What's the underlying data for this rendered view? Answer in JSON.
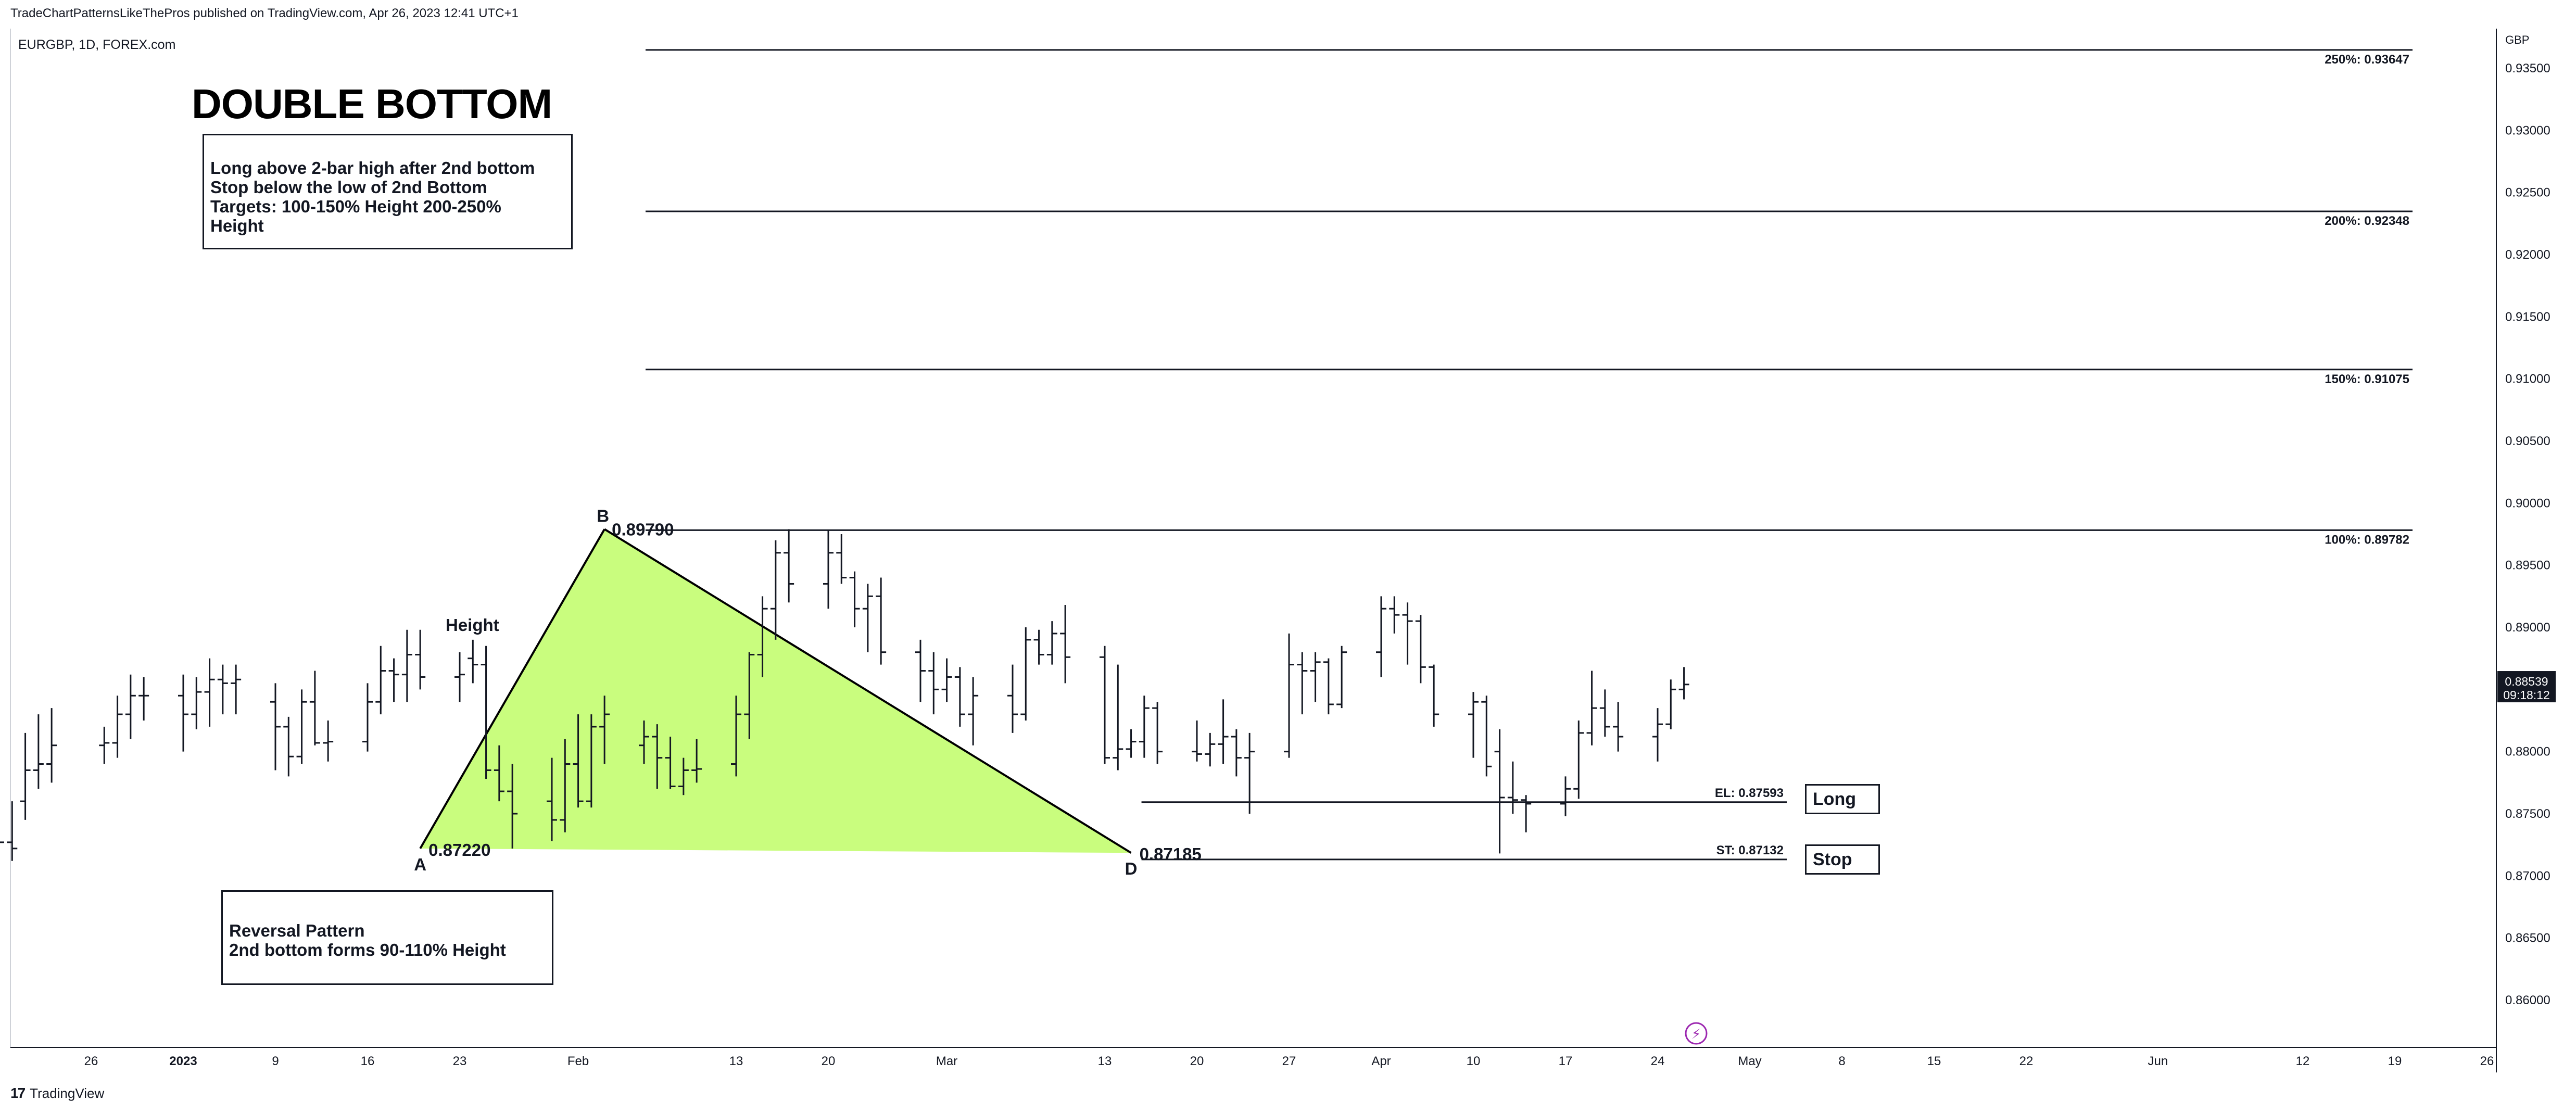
{
  "header": {
    "published": "TradeChartPatternsLikeThePros published on TradingView.com, Apr 26, 2023 12:41 UTC+1",
    "symbol": "EURGBP, 1D, FOREX.com"
  },
  "footer": {
    "brand": "TradingView",
    "logo_glyph": "17"
  },
  "colors": {
    "pattern_fill": "#c9fd7e",
    "bars": "#131722",
    "price_label_bg": "#131722",
    "alert_icon": "#9c27b0"
  },
  "annotations": {
    "title": "DOUBLE BOTTOM",
    "rules_box": [
      "Long above 2-bar high after 2nd bottom",
      "Stop below the low of 2nd Bottom",
      "Targets: 100-150% Height 200-250%",
      "Height"
    ],
    "reversal_box": [
      "Reversal Pattern",
      "2nd bottom forms 90-110% Height"
    ],
    "height_label": "Height",
    "point_a": "A",
    "point_b": "B",
    "point_d": "D",
    "price_a": "0.87220",
    "price_b": "0.89790",
    "price_d": "0.87185",
    "long_tag": "Long",
    "stop_tag": "Stop",
    "alert_glyph": "⚡"
  },
  "chart_data": {
    "type": "bar",
    "symbol": "EURGBP",
    "timeframe": "1D",
    "currency": "GBP",
    "ylim": [
      0.8565,
      0.9395
    ],
    "y_ticks": [
      "0.93500",
      "0.93000",
      "0.92500",
      "0.92000",
      "0.91500",
      "0.91000",
      "0.90500",
      "0.90000",
      "0.89500",
      "0.89000",
      "0.88500",
      "0.88000",
      "0.87500",
      "0.87000",
      "0.86500",
      "0.86000"
    ],
    "x_ticks": [
      {
        "label": "26",
        "date": "2022-12-26"
      },
      {
        "label": "2023",
        "date": "2023-01-02",
        "bold": true
      },
      {
        "label": "9",
        "date": "2023-01-09"
      },
      {
        "label": "16",
        "date": "2023-01-16"
      },
      {
        "label": "23",
        "date": "2023-01-23"
      },
      {
        "label": "Feb",
        "date": "2023-02-01"
      },
      {
        "label": "13",
        "date": "2023-02-13"
      },
      {
        "label": "20",
        "date": "2023-02-20"
      },
      {
        "label": "Mar",
        "date": "2023-03-01"
      },
      {
        "label": "13",
        "date": "2023-03-13"
      },
      {
        "label": "20",
        "date": "2023-03-20"
      },
      {
        "label": "27",
        "date": "2023-03-27"
      },
      {
        "label": "Apr",
        "date": "2023-04-03"
      },
      {
        "label": "10",
        "date": "2023-04-10"
      },
      {
        "label": "17",
        "date": "2023-04-17"
      },
      {
        "label": "24",
        "date": "2023-04-24"
      },
      {
        "label": "May",
        "date": "2023-05-01"
      },
      {
        "label": "8",
        "date": "2023-05-08"
      },
      {
        "label": "15",
        "date": "2023-05-15"
      },
      {
        "label": "22",
        "date": "2023-05-22"
      },
      {
        "label": "Jun",
        "date": "2023-06-01"
      },
      {
        "label": "12",
        "date": "2023-06-12"
      },
      {
        "label": "19",
        "date": "2023-06-19"
      },
      {
        "label": "26",
        "date": "2023-06-26"
      }
    ],
    "last_price": "0.88539",
    "countdown": "09:18:12",
    "target_levels": [
      {
        "label": "250%: 0.93647",
        "value": 0.93647
      },
      {
        "label": "200%: 0.92348",
        "value": 0.92348
      },
      {
        "label": "150%: 0.91075",
        "value": 0.91075
      },
      {
        "label": "100%: 0.89782",
        "value": 0.89782
      }
    ],
    "entry_levels": [
      {
        "label": "EL: 0.87593",
        "value": 0.87593
      },
      {
        "label": "ST: 0.87132",
        "value": 0.87132
      }
    ],
    "pattern_points": [
      {
        "name": "A",
        "date": "2023-01-20",
        "price": 0.8722
      },
      {
        "name": "B",
        "date": "2023-02-03",
        "price": 0.8979
      },
      {
        "name": "D",
        "date": "2023-03-15",
        "price": 0.87185
      }
    ],
    "bars": [
      {
        "date": "2022-12-19",
        "o": 0.8735,
        "h": 0.8775,
        "l": 0.872,
        "c": 0.8727
      },
      {
        "date": "2022-12-20",
        "o": 0.8727,
        "h": 0.876,
        "l": 0.8712,
        "c": 0.8722
      },
      {
        "date": "2022-12-21",
        "o": 0.876,
        "h": 0.8815,
        "l": 0.8745,
        "c": 0.8785
      },
      {
        "date": "2022-12-22",
        "o": 0.8785,
        "h": 0.883,
        "l": 0.877,
        "c": 0.879
      },
      {
        "date": "2022-12-23",
        "o": 0.879,
        "h": 0.8835,
        "l": 0.8775,
        "c": 0.8805
      },
      {
        "date": "2022-12-27",
        "o": 0.8805,
        "h": 0.882,
        "l": 0.879,
        "c": 0.8807
      },
      {
        "date": "2022-12-28",
        "o": 0.8807,
        "h": 0.8845,
        "l": 0.8795,
        "c": 0.883
      },
      {
        "date": "2022-12-29",
        "o": 0.883,
        "h": 0.8862,
        "l": 0.881,
        "c": 0.8845
      },
      {
        "date": "2022-12-30",
        "o": 0.8845,
        "h": 0.886,
        "l": 0.8825,
        "c": 0.8845
      },
      {
        "date": "2023-01-02",
        "o": 0.8845,
        "h": 0.8862,
        "l": 0.88,
        "c": 0.883
      },
      {
        "date": "2023-01-03",
        "o": 0.883,
        "h": 0.886,
        "l": 0.8818,
        "c": 0.8848
      },
      {
        "date": "2023-01-04",
        "o": 0.8848,
        "h": 0.8875,
        "l": 0.882,
        "c": 0.8858
      },
      {
        "date": "2023-01-05",
        "o": 0.8858,
        "h": 0.887,
        "l": 0.883,
        "c": 0.8855
      },
      {
        "date": "2023-01-06",
        "o": 0.8855,
        "h": 0.887,
        "l": 0.883,
        "c": 0.8858
      },
      {
        "date": "2023-01-09",
        "o": 0.884,
        "h": 0.8855,
        "l": 0.8785,
        "c": 0.882
      },
      {
        "date": "2023-01-10",
        "o": 0.882,
        "h": 0.8828,
        "l": 0.878,
        "c": 0.8796
      },
      {
        "date": "2023-01-11",
        "o": 0.8796,
        "h": 0.885,
        "l": 0.879,
        "c": 0.884
      },
      {
        "date": "2023-01-12",
        "o": 0.884,
        "h": 0.8865,
        "l": 0.8805,
        "c": 0.8807
      },
      {
        "date": "2023-01-13",
        "o": 0.8807,
        "h": 0.8825,
        "l": 0.8792,
        "c": 0.8808
      },
      {
        "date": "2023-01-16",
        "o": 0.8808,
        "h": 0.8855,
        "l": 0.88,
        "c": 0.884
      },
      {
        "date": "2023-01-17",
        "o": 0.884,
        "h": 0.8885,
        "l": 0.883,
        "c": 0.8865
      },
      {
        "date": "2023-01-18",
        "o": 0.8865,
        "h": 0.8875,
        "l": 0.884,
        "c": 0.8862
      },
      {
        "date": "2023-01-19",
        "o": 0.8862,
        "h": 0.8898,
        "l": 0.884,
        "c": 0.8878
      },
      {
        "date": "2023-01-20",
        "o": 0.8878,
        "h": 0.8898,
        "l": 0.885,
        "c": 0.886
      },
      {
        "date": "2023-01-23",
        "o": 0.886,
        "h": 0.888,
        "l": 0.884,
        "c": 0.8862
      },
      {
        "date": "2023-01-24",
        "o": 0.8875,
        "h": 0.889,
        "l": 0.8855,
        "c": 0.887
      },
      {
        "date": "2023-01-25",
        "o": 0.887,
        "h": 0.8885,
        "l": 0.8778,
        "c": 0.8785
      },
      {
        "date": "2023-01-26",
        "o": 0.8785,
        "h": 0.8805,
        "l": 0.876,
        "c": 0.8768
      },
      {
        "date": "2023-01-27",
        "o": 0.8768,
        "h": 0.879,
        "l": 0.8722,
        "c": 0.875
      },
      {
        "date": "2023-01-30",
        "o": 0.876,
        "h": 0.8795,
        "l": 0.8728,
        "c": 0.8745
      },
      {
        "date": "2023-01-31",
        "o": 0.8745,
        "h": 0.881,
        "l": 0.8735,
        "c": 0.879
      },
      {
        "date": "2023-02-01",
        "o": 0.879,
        "h": 0.883,
        "l": 0.8755,
        "c": 0.876
      },
      {
        "date": "2023-02-02",
        "o": 0.876,
        "h": 0.883,
        "l": 0.8755,
        "c": 0.882
      },
      {
        "date": "2023-02-03",
        "o": 0.882,
        "h": 0.8845,
        "l": 0.879,
        "c": 0.883
      },
      {
        "date": "2023-02-06",
        "o": 0.8805,
        "h": 0.8825,
        "l": 0.879,
        "c": 0.8812
      },
      {
        "date": "2023-02-07",
        "o": 0.8812,
        "h": 0.8822,
        "l": 0.877,
        "c": 0.8795
      },
      {
        "date": "2023-02-08",
        "o": 0.8795,
        "h": 0.8812,
        "l": 0.877,
        "c": 0.8772
      },
      {
        "date": "2023-02-09",
        "o": 0.8772,
        "h": 0.8795,
        "l": 0.8765,
        "c": 0.8785
      },
      {
        "date": "2023-02-10",
        "o": 0.8785,
        "h": 0.881,
        "l": 0.8775,
        "c": 0.8786
      },
      {
        "date": "2023-02-13",
        "o": 0.879,
        "h": 0.8845,
        "l": 0.878,
        "c": 0.883
      },
      {
        "date": "2023-02-14",
        "o": 0.883,
        "h": 0.888,
        "l": 0.881,
        "c": 0.8878
      },
      {
        "date": "2023-02-15",
        "o": 0.8878,
        "h": 0.8925,
        "l": 0.886,
        "c": 0.8915
      },
      {
        "date": "2023-02-16",
        "o": 0.8915,
        "h": 0.897,
        "l": 0.889,
        "c": 0.896
      },
      {
        "date": "2023-02-17",
        "o": 0.896,
        "h": 0.8979,
        "l": 0.892,
        "c": 0.8935
      },
      {
        "date": "2023-02-20",
        "o": 0.8935,
        "h": 0.8978,
        "l": 0.8915,
        "c": 0.896
      },
      {
        "date": "2023-02-21",
        "o": 0.896,
        "h": 0.8975,
        "l": 0.8935,
        "c": 0.894
      },
      {
        "date": "2023-02-22",
        "o": 0.894,
        "h": 0.8945,
        "l": 0.89,
        "c": 0.8915
      },
      {
        "date": "2023-02-23",
        "o": 0.8915,
        "h": 0.8935,
        "l": 0.888,
        "c": 0.8925
      },
      {
        "date": "2023-02-24",
        "o": 0.8925,
        "h": 0.894,
        "l": 0.887,
        "c": 0.888
      },
      {
        "date": "2023-02-27",
        "o": 0.888,
        "h": 0.889,
        "l": 0.884,
        "c": 0.8865
      },
      {
        "date": "2023-02-28",
        "o": 0.8865,
        "h": 0.888,
        "l": 0.883,
        "c": 0.885
      },
      {
        "date": "2023-03-01",
        "o": 0.885,
        "h": 0.8875,
        "l": 0.884,
        "c": 0.886
      },
      {
        "date": "2023-03-02",
        "o": 0.886,
        "h": 0.8868,
        "l": 0.882,
        "c": 0.883
      },
      {
        "date": "2023-03-03",
        "o": 0.883,
        "h": 0.886,
        "l": 0.8805,
        "c": 0.8845
      },
      {
        "date": "2023-03-06",
        "o": 0.8845,
        "h": 0.887,
        "l": 0.8815,
        "c": 0.883
      },
      {
        "date": "2023-03-07",
        "o": 0.883,
        "h": 0.89,
        "l": 0.8825,
        "c": 0.889
      },
      {
        "date": "2023-03-08",
        "o": 0.889,
        "h": 0.8898,
        "l": 0.887,
        "c": 0.8878
      },
      {
        "date": "2023-03-09",
        "o": 0.8878,
        "h": 0.8905,
        "l": 0.887,
        "c": 0.8895
      },
      {
        "date": "2023-03-10",
        "o": 0.8895,
        "h": 0.8918,
        "l": 0.8855,
        "c": 0.8876
      },
      {
        "date": "2023-03-13",
        "o": 0.8876,
        "h": 0.8885,
        "l": 0.879,
        "c": 0.8795
      },
      {
        "date": "2023-03-14",
        "o": 0.8795,
        "h": 0.887,
        "l": 0.8785,
        "c": 0.8802
      },
      {
        "date": "2023-03-15",
        "o": 0.8802,
        "h": 0.8818,
        "l": 0.8795,
        "c": 0.8808
      },
      {
        "date": "2023-03-16",
        "o": 0.8808,
        "h": 0.8845,
        "l": 0.8795,
        "c": 0.8835
      },
      {
        "date": "2023-03-17",
        "o": 0.8835,
        "h": 0.884,
        "l": 0.879,
        "c": 0.88
      },
      {
        "date": "2023-03-20",
        "o": 0.88,
        "h": 0.8825,
        "l": 0.8792,
        "c": 0.8798
      },
      {
        "date": "2023-03-21",
        "o": 0.8798,
        "h": 0.8815,
        "l": 0.8788,
        "c": 0.8806
      },
      {
        "date": "2023-03-22",
        "o": 0.8806,
        "h": 0.8842,
        "l": 0.879,
        "c": 0.8812
      },
      {
        "date": "2023-03-23",
        "o": 0.8812,
        "h": 0.8818,
        "l": 0.878,
        "c": 0.8795
      },
      {
        "date": "2023-03-24",
        "o": 0.8795,
        "h": 0.8815,
        "l": 0.875,
        "c": 0.88
      },
      {
        "date": "2023-03-27",
        "o": 0.88,
        "h": 0.8895,
        "l": 0.8795,
        "c": 0.887
      },
      {
        "date": "2023-03-28",
        "o": 0.887,
        "h": 0.888,
        "l": 0.883,
        "c": 0.8865
      },
      {
        "date": "2023-03-29",
        "o": 0.8865,
        "h": 0.888,
        "l": 0.884,
        "c": 0.8872
      },
      {
        "date": "2023-03-30",
        "o": 0.8872,
        "h": 0.8875,
        "l": 0.883,
        "c": 0.8838
      },
      {
        "date": "2023-03-31",
        "o": 0.8838,
        "h": 0.8885,
        "l": 0.8835,
        "c": 0.888
      },
      {
        "date": "2023-04-03",
        "o": 0.888,
        "h": 0.8925,
        "l": 0.886,
        "c": 0.8915
      },
      {
        "date": "2023-04-04",
        "o": 0.8915,
        "h": 0.8925,
        "l": 0.8895,
        "c": 0.891
      },
      {
        "date": "2023-04-05",
        "o": 0.891,
        "h": 0.892,
        "l": 0.887,
        "c": 0.8905
      },
      {
        "date": "2023-04-06",
        "o": 0.8905,
        "h": 0.891,
        "l": 0.8855,
        "c": 0.8868
      },
      {
        "date": "2023-04-07",
        "o": 0.8868,
        "h": 0.887,
        "l": 0.882,
        "c": 0.883
      },
      {
        "date": "2023-04-10",
        "o": 0.883,
        "h": 0.8848,
        "l": 0.8795,
        "c": 0.884
      },
      {
        "date": "2023-04-11",
        "o": 0.884,
        "h": 0.8845,
        "l": 0.878,
        "c": 0.8788
      },
      {
        "date": "2023-04-12",
        "o": 0.88,
        "h": 0.8818,
        "l": 0.8718,
        "c": 0.8763
      },
      {
        "date": "2023-04-13",
        "o": 0.8763,
        "h": 0.8792,
        "l": 0.875,
        "c": 0.8761
      },
      {
        "date": "2023-04-14",
        "o": 0.8761,
        "h": 0.8765,
        "l": 0.8735,
        "c": 0.8758
      },
      {
        "date": "2023-04-17",
        "o": 0.8758,
        "h": 0.878,
        "l": 0.8748,
        "c": 0.877
      },
      {
        "date": "2023-04-18",
        "o": 0.877,
        "h": 0.8825,
        "l": 0.8762,
        "c": 0.8815
      },
      {
        "date": "2023-04-19",
        "o": 0.8815,
        "h": 0.8865,
        "l": 0.8805,
        "c": 0.8835
      },
      {
        "date": "2023-04-20",
        "o": 0.8835,
        "h": 0.885,
        "l": 0.8812,
        "c": 0.882
      },
      {
        "date": "2023-04-21",
        "o": 0.882,
        "h": 0.884,
        "l": 0.88,
        "c": 0.8812
      },
      {
        "date": "2023-04-24",
        "o": 0.8812,
        "h": 0.8835,
        "l": 0.8792,
        "c": 0.8822
      },
      {
        "date": "2023-04-25",
        "o": 0.8822,
        "h": 0.8858,
        "l": 0.8818,
        "c": 0.885
      },
      {
        "date": "2023-04-26",
        "o": 0.885,
        "h": 0.8868,
        "l": 0.8842,
        "c": 0.8854
      }
    ]
  }
}
